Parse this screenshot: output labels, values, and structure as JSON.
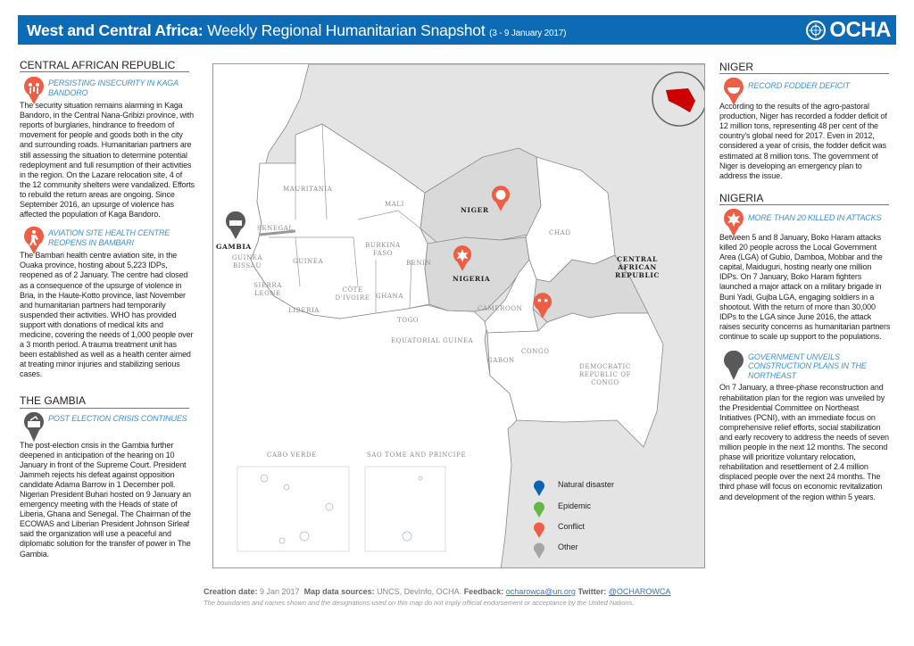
{
  "header": {
    "title_bold": "West and Central Africa:",
    "title": "Weekly Regional Humanitarian Snapshot",
    "dates": "(3 - 9 January 2017)",
    "logo": "OCHA",
    "color": "#0d6ab4"
  },
  "left": {
    "car": {
      "heading": "CENTRAL AFRICAN REPUBLIC",
      "items": [
        {
          "icon": "conflict-people-icon",
          "title": "PERSISTING INSECURITY IN KAGA BANDORO",
          "body": "The security situation remains alarming in Kaga Bandoro, in the Central Nana-Gribizi province, with reports of burglaries, hindrance to freedom of movement for people and goods both in the city and surrounding roads. Humanitarian partners are still assessing the situation to determine potential redeployment and full resumption of their activities in the region. On the Lazare relocation site, 4 of the 12 community shelters were vandalized. Efforts to rebuild the return areas are ongoing. Since September 2016, an upsurge of violence has affected the population of Kaga Bandoro."
        },
        {
          "icon": "health-facility-icon",
          "title": "AVIATION SITE HEALTH CENTRE REOPENS IN BAMBARI",
          "body": "The Bambari health centre aviation site, in the Ouaka province, hosting about 5,223 IDPs, reopened as of 2 January. The centre had closed as a consequence of the upsurge of violence in Bria, in the Haute-Kotto province, last November and humanitarian partners had temporarily suspended their activities. WHO has provided support with donations of medical kits and medicine, covering the needs of 1,000 people over a 3 month period. A trauma treatment unit has been established as well as a health center aimed at treating minor injuries and stabilizing serious cases."
        }
      ]
    },
    "gambia": {
      "heading": "THE GAMBIA",
      "items": [
        {
          "icon": "ballot-box-icon",
          "title": "POST ELECTION CRISIS CONTINUES",
          "body": "The post-election crisis in the Gambia further deepened in anticipation of the hearing on 10 January in front of the Supreme Court. President Jammeh rejects his defeat against opposition candidate Adama Barrow in 1 December poll. Nigerian President Buhari hosted on 9 January an emergency meeting with the Heads of state of Liberia, Ghana and Senegal. The Chairman of the ECOWAS and Liberian President Johnson Sirleaf said the organization will use a peaceful and diplomatic solution for the transfer of power in The Gambia."
        }
      ]
    }
  },
  "right": {
    "niger": {
      "heading": "NIGER",
      "items": [
        {
          "icon": "food-insecurity-icon",
          "title": "RECORD FODDER DEFICIT",
          "body": "According to the results of the agro-pastoral production, Niger has recorded a fodder deficit of 12 million tons, representing 48 per cent of the country's global need for 2017. Even in 2012, considered a year of crisis, the fodder deficit was estimated at 8 million tons. The government of Niger is developing an emergency plan to address the issue."
        }
      ]
    },
    "nigeria": {
      "heading": "NIGERIA",
      "items": [
        {
          "icon": "attack-icon",
          "title": "MORE THAN 20 KILLED IN ATTACKS",
          "body": "Between 5 and 8 January, Boko Haram attacks killed 20 people across the Local Government Area (LGA) of Gubio, Damboa, Mobbar and the capital, Maiduguri, hosting nearly one million IDPs. On 7 January, Boko Haram fighters launched a major attack on a military brigade in Buni Yadi, Gujba LGA, engaging soldiers in a shootout. With the return of more than 30,000 IDPs to the LGA since June 2016, the attack raises security concerns as humanitarian partners continue to scale up support to the populations."
        },
        {
          "icon": "other-pin-icon",
          "title": "GOVERNMENT UNVEILS CONSTRUCTION PLANS IN THE NORTHEAST",
          "body": "On 7 January, a three-phase reconstruction and rehabilitation plan for the region was unveiled by the Presidential Committee on Northeast Initiatives (PCNI), with an immediate focus on comprehensive relief efforts, social stabilization and early recovery to address the needs of seven million people in the next 12 months. The second phase will prioritize voluntary relocation, rehabilitation and resettlement of 2.4 million displaced people over the next 24 months. The third phase will focus on economic revitalization and development of the region within 5 years."
        }
      ]
    }
  },
  "map": {
    "labels": {
      "mauritania": "MAURITANIA",
      "mali": "MALI",
      "niger": "NIGER",
      "chad": "CHAD",
      "senegal": "SENEGAL",
      "gambia": "GAMBIA",
      "guinea_bissau": "GUINEA BISSAU",
      "guinea": "GUINEA",
      "sierra_leone": "SIERRA LEONE",
      "liberia": "LIBERIA",
      "cote": "CÔTE D'IVOIRE",
      "burkina": "BURKINA FASO",
      "ghana": "GHANA",
      "togo": "TOGO",
      "benin": "BENIN",
      "nigeria": "NIGERIA",
      "cameroon": "CAMEROON",
      "car": "CENTRAL AFRICAN REPUBLIC",
      "eq_guinea": "EQUATORIAL GUINEA",
      "gabon": "GABON",
      "congo": "CONGO",
      "drc": "DEMOCRATIC REPUBLIC OF CONGO",
      "cabo_verde": "CABO VERDE",
      "stp": "SAO TOME AND PRINCIPE"
    },
    "legend": [
      {
        "label": "Natural disaster",
        "color": "#0b63b5"
      },
      {
        "label": "Epidemic",
        "color": "#63b843"
      },
      {
        "label": "Conflict",
        "color": "#ef5d44"
      },
      {
        "label": "Other",
        "color": "#a5a5a5"
      }
    ],
    "conflict_color": "#ef5d44",
    "other_color": "#58595b"
  },
  "footer": {
    "creation_label": "Creation date:",
    "creation_value": "9 Jan 2017",
    "sources_label": "Map data sources:",
    "sources_value": "UNCS, DevInfo, OCHA.",
    "feedback_label": "Feedback:",
    "feedback_value": "ocharowca@un.org",
    "twitter_label": "Twitter:",
    "twitter_value": "@OCHAROWCA",
    "disclaimer": "The boundaries and names shown and the designations used on this map do not imply official endorsement or acceptance by the United Nations."
  }
}
